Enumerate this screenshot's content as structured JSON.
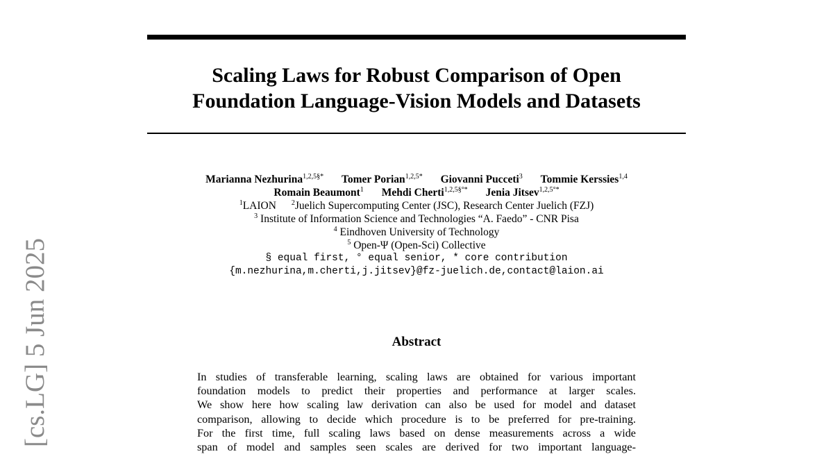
{
  "arxiv_stamp": "[cs.LG]  5 Jun 2025",
  "title": {
    "line1": "Scaling Laws for Robust Comparison of Open",
    "line2": "Foundation Language-Vision Models and Datasets"
  },
  "authors": [
    {
      "name": "Marianna Nezhurina",
      "marks": "1,2,5§*"
    },
    {
      "name": "Tomer Porian",
      "marks": "1,2,5*"
    },
    {
      "name": "Giovanni Pucceti",
      "marks": "3"
    },
    {
      "name": "Tommie Kerssies",
      "marks": "1,4"
    },
    {
      "name": "Romain Beaumont",
      "marks": "1"
    },
    {
      "name": "Mehdi Cherti",
      "marks": "1,2,5§°*"
    },
    {
      "name": "Jenia Jitsev",
      "marks": "1,2,5°*"
    }
  ],
  "affiliations": [
    {
      "mark": "1",
      "text": "LAION"
    },
    {
      "mark": "2",
      "text": "Juelich Supercomputing Center (JSC), Research Center Juelich (FZJ)"
    },
    {
      "mark": "3",
      "text": "Institute of Information Science and Technologies “A. Faedo” - CNR Pisa"
    },
    {
      "mark": "4",
      "text": "Eindhoven University of Technology"
    },
    {
      "mark": "5",
      "text": "Open-Ψ (Open-Sci) Collective"
    }
  ],
  "contribution_note": "§ equal first, ° equal senior, * core contribution",
  "emails": "{m.nezhurina,m.cherti,j.jitsev}@fz-juelich.de,contact@laion.ai",
  "abstract": {
    "heading": "Abstract",
    "lines": [
      "In studies of transferable learning, scaling laws are obtained for various important",
      "foundation models to predict their properties and performance at larger scales.",
      "We show here how scaling law derivation can also be used for model and dataset",
      "comparison, allowing to decide which procedure is to be preferred for pre-training.",
      "For the first time, full scaling laws based on dense measurements across a wide",
      "span of model and samples seen scales are derived for two important language-"
    ]
  }
}
